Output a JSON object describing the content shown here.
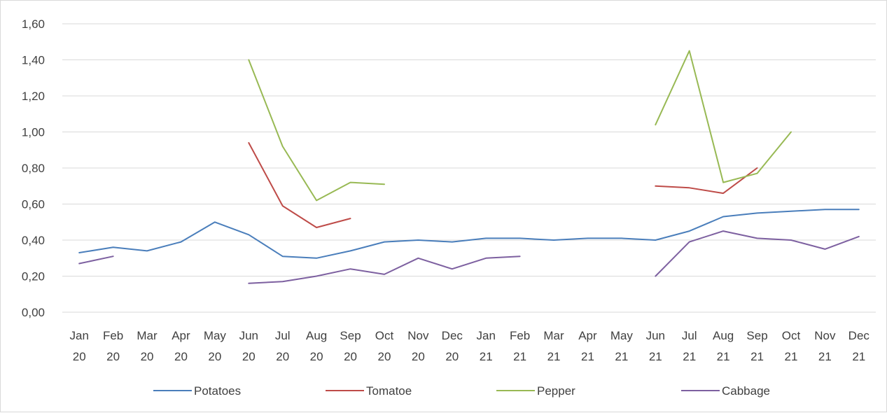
{
  "chart_data": {
    "type": "line",
    "title": "",
    "xlabel": "",
    "ylabel": "",
    "categories": [
      [
        "Jan",
        "20"
      ],
      [
        "Feb",
        "20"
      ],
      [
        "Mar",
        "20"
      ],
      [
        "Apr",
        "20"
      ],
      [
        "May",
        "20"
      ],
      [
        "Jun",
        "20"
      ],
      [
        "Jul",
        "20"
      ],
      [
        "Aug",
        "20"
      ],
      [
        "Sep",
        "20"
      ],
      [
        "Oct",
        "20"
      ],
      [
        "Nov",
        "20"
      ],
      [
        "Dec",
        "20"
      ],
      [
        "Jan",
        "21"
      ],
      [
        "Feb",
        "21"
      ],
      [
        "Mar",
        "21"
      ],
      [
        "Apr",
        "21"
      ],
      [
        "May",
        "21"
      ],
      [
        "Jun",
        "21"
      ],
      [
        "Jul",
        "21"
      ],
      [
        "Aug",
        "21"
      ],
      [
        "Sep",
        "21"
      ],
      [
        "Oct",
        "21"
      ],
      [
        "Nov",
        "21"
      ],
      [
        "Dec",
        "21"
      ]
    ],
    "ylim": [
      0,
      1.6
    ],
    "y_ticks": [
      "0,00",
      "0,20",
      "0,40",
      "0,60",
      "0,80",
      "1,00",
      "1,20",
      "1,40",
      "1,60"
    ],
    "y_tick_values": [
      0,
      0.2,
      0.4,
      0.6,
      0.8,
      1.0,
      1.2,
      1.4,
      1.6
    ],
    "grid": true,
    "legend_position": "bottom",
    "series": [
      {
        "name": "Potatoes",
        "color": "#4a7ebb",
        "values": [
          0.33,
          0.36,
          0.34,
          0.39,
          0.5,
          0.43,
          0.31,
          0.3,
          0.34,
          0.39,
          0.4,
          0.39,
          0.41,
          0.41,
          0.4,
          0.41,
          0.41,
          0.4,
          0.45,
          0.53,
          0.55,
          0.56,
          0.57,
          0.57
        ]
      },
      {
        "name": "Tomatoe",
        "color": "#be4b48",
        "values": [
          null,
          null,
          null,
          null,
          null,
          0.94,
          0.59,
          0.47,
          0.52,
          null,
          null,
          null,
          null,
          null,
          null,
          null,
          null,
          0.7,
          0.69,
          0.66,
          0.8,
          null,
          null,
          null
        ]
      },
      {
        "name": "Pepper",
        "color": "#98b954",
        "values": [
          null,
          null,
          null,
          null,
          null,
          1.4,
          0.92,
          0.62,
          0.72,
          0.71,
          null,
          null,
          null,
          null,
          null,
          null,
          null,
          1.04,
          1.45,
          0.72,
          0.77,
          1.0,
          null,
          null
        ]
      },
      {
        "name": "Cabbage",
        "color": "#7d60a0",
        "values": [
          0.27,
          0.31,
          null,
          null,
          null,
          0.16,
          0.17,
          0.2,
          0.24,
          0.21,
          0.3,
          0.24,
          0.3,
          0.31,
          null,
          null,
          null,
          0.2,
          0.39,
          0.45,
          0.41,
          0.4,
          0.35,
          0.42
        ]
      }
    ]
  }
}
